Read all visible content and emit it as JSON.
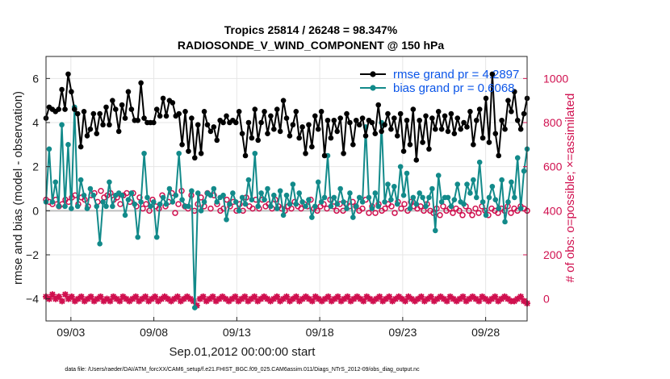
{
  "chart_data": {
    "type": "line",
    "title": "Tropics 25814 / 26248 = 98.347%",
    "subtitle": "RADIOSONDE_V_WIND_COMPONENT @ 150 hPa",
    "xlabel": "Sep.01,2012 00:00:00 start",
    "ylabel_left": "rmse and bias (model - observation)",
    "ylabel_right": "# of obs: o=possible; ×=assimilated",
    "footnote": "data file: /Users/raeder/DAI/ATM_forcXX/CAM6_setup/f.e21.FHIST_BGC.f09_025.CAM6assim.011/Diags_NTrS_2012-09/obs_diag_output.nc",
    "x_range": [
      1.5,
      30.5
    ],
    "x_ticks": [
      3,
      8,
      13,
      18,
      23,
      28
    ],
    "x_tick_labels": [
      "09/03",
      "09/08",
      "09/13",
      "09/18",
      "09/23",
      "09/28"
    ],
    "ylim_left": [
      -5,
      7
    ],
    "y_ticks_left": [
      -4,
      -2,
      0,
      2,
      4,
      6
    ],
    "ylim_right": [
      -100,
      1100
    ],
    "y_ticks_right": [
      0,
      200,
      400,
      600,
      800,
      1000
    ],
    "grid": true,
    "zero_line": 0,
    "legend_position": "top-right",
    "colors": {
      "rmse": "#000000",
      "bias": "#128a8a",
      "obs": "#d0104f",
      "legend_text": "#0b55e8",
      "zero_line": "#bfbfbf",
      "grid": "#e6e6e6"
    },
    "series": [
      {
        "name": "rmse grand pr = 4.2897",
        "axis": "left",
        "values": [
          4.2,
          4.7,
          4.6,
          4.5,
          4.6,
          5.5,
          4.6,
          6.2,
          5.4,
          4.6,
          4.4,
          2.9,
          4.5,
          3.4,
          3.7,
          4.4,
          3.5,
          4.4,
          3.9,
          4.7,
          3.9,
          5.0,
          4.6,
          3.6,
          4.8,
          4.2,
          5.4,
          4.6,
          4.1,
          4.1,
          5.8,
          4.2,
          4.0,
          4.0,
          4.0,
          4.6,
          4.3,
          5.1,
          4.3,
          5.0,
          4.9,
          4.3,
          4.4,
          3.0,
          4.5,
          2.7,
          4.2,
          2.4,
          3.9,
          2.6,
          4.5,
          3.9,
          3.6,
          3.8,
          3.2,
          4.1,
          4.0,
          4.3,
          4.0,
          4.1,
          4.0,
          4.5,
          3.5,
          2.5,
          4.0,
          3.3,
          4.6,
          3.2,
          4.0,
          4.5,
          3.5,
          4.3,
          3.7,
          4.6,
          3.6,
          5.0,
          4.2,
          3.4,
          3.9,
          4.5,
          3.3,
          3.8,
          2.6,
          3.9,
          2.9,
          4.3,
          3.7,
          4.5,
          2.5,
          4.1,
          3.3,
          4.1,
          3.6,
          4.2,
          2.6,
          4.4,
          4.0,
          3.0,
          4.1,
          3.9,
          4.2,
          3.4,
          4.1,
          4.0,
          3.5,
          4.8,
          3.6,
          3.9,
          4.4,
          3.7,
          4.2,
          3.4,
          4.4,
          2.7,
          4.1,
          3.0,
          4.6,
          2.3,
          4.1,
          3.1,
          4.3,
          2.8,
          4.2,
          3.7,
          4.5,
          3.7,
          4.3,
          3.6,
          4.4,
          3.5,
          4.2,
          3.7,
          4.0,
          3.8,
          4.5,
          3.0,
          4.1,
          4.6,
          3.3,
          5.1,
          3.1,
          6.2,
          3.5,
          2.5,
          4.1,
          3.7,
          5.0,
          4.5,
          5.4,
          4.1,
          3.7,
          4.4,
          5.1
        ],
        "x_start": 1.5,
        "x_end": 30.5
      },
      {
        "name": "bias grand pr = 0.6068",
        "axis": "left",
        "values": [
          0.4,
          2.8,
          0.4,
          1.3,
          0.2,
          3.9,
          0.2,
          3.0,
          0.1,
          4.7,
          0.2,
          1.4,
          0.7,
          0.1,
          1.0,
          0.7,
          0.2,
          -1.5,
          0.4,
          0.2,
          1.3,
          0.2,
          0.7,
          0.8,
          0.7,
          -0.2,
          0.5,
          0.8,
          0.3,
          -1.2,
          0.4,
          2.6,
          0.6,
          0.2,
          0.4,
          -1.2,
          0.3,
          0.6,
          0.3,
          1.0,
          0.4,
          0.7,
          2.6,
          0.5,
          0.2,
          0.2,
          0.9,
          -4.4,
          0.8,
          0.0,
          0.4,
          0.8,
          0.7,
          1.0,
          0.4,
          0.6,
          0.7,
          -0.4,
          0.3,
          0.8,
          0.4,
          0.0,
          0.6,
          0.3,
          1.4,
          0.5,
          2.6,
          0.2,
          0.8,
          0.5,
          1.0,
          0.2,
          0.7,
          0.1,
          0.9,
          -0.2,
          0.7,
          0.3,
          1.2,
          0.3,
          0.8,
          0.4,
          0.2,
          0.5,
          -0.3,
          0.2,
          1.3,
          0.4,
          0.6,
          2.5,
          0.2,
          0.6,
          0.3,
          1.0,
          0.4,
          0.1,
          0.8,
          -0.3,
          0.2,
          0.6,
          0.4,
          3.8,
          0.6,
          0.1,
          0.8,
          0.2,
          4.0,
          0.4,
          1.2,
          0.5,
          1.1,
          0.3,
          2.0,
          0.7,
          1.7,
          0.1,
          0.6,
          0.3,
          0.8,
          0.6,
          0.2,
          0.6,
          1.0,
          -0.9,
          1.6,
          0.4,
          0.6,
          0.6,
          0.2,
          0.5,
          1.2,
          0.4,
          0.3,
          1.2,
          0.8,
          1.4,
          0.6,
          2.2,
          0.4,
          -0.2,
          0.6,
          1.1,
          0.5,
          0.1,
          1.4,
          -0.5,
          0.4,
          1.3,
          0.6,
          2.4,
          0.1,
          1.8,
          2.8
        ],
        "x_start": 1.5,
        "x_end": 30.5
      },
      {
        "name": "# of obs possible (o)",
        "axis": "right",
        "values": [
          450,
          440,
          430,
          450,
          420,
          430,
          450,
          440,
          460,
          470,
          430,
          460,
          450,
          420,
          470,
          480,
          440,
          490,
          460,
          470,
          480,
          450,
          460,
          430,
          470,
          480,
          440,
          480,
          420,
          460,
          410,
          430,
          400,
          450,
          420,
          410,
          470,
          420,
          440,
          480,
          390,
          430,
          490,
          420,
          410,
          470,
          400,
          430,
          460,
          420,
          480,
          410,
          470,
          430,
          400,
          410,
          450,
          420,
          440,
          400,
          430,
          400,
          460,
          420,
          410,
          450,
          410,
          450,
          420,
          430,
          410,
          450,
          420,
          410,
          400,
          420,
          410,
          440,
          420,
          410,
          430,
          420,
          450,
          410,
          400,
          420,
          430,
          410,
          450,
          420,
          400,
          430,
          400,
          430,
          420,
          440,
          420,
          400,
          410,
          450,
          390,
          420,
          390,
          430,
          400,
          410,
          430,
          420,
          390,
          440,
          410,
          430,
          400,
          440,
          420,
          410,
          420,
          400,
          430,
          400,
          390,
          410,
          380,
          420,
          400,
          410,
          390,
          410,
          400,
          380,
          420,
          400,
          380,
          410,
          390,
          420,
          400,
          380,
          410,
          400,
          390,
          410,
          400,
          420,
          390,
          410,
          400,
          420,
          410,
          400
        ],
        "x_start": 1.5,
        "x_end": 30.5
      },
      {
        "name": "# of obs assimilated (×)",
        "axis": "right",
        "values": [
          10,
          0,
          20,
          0,
          10,
          -10,
          20,
          0,
          10,
          -10,
          0,
          10,
          -10,
          0,
          10,
          -10,
          0,
          10,
          -10,
          0,
          -10,
          10,
          0,
          -10,
          10,
          0,
          -10,
          0,
          10,
          -10,
          0,
          10,
          -10,
          0,
          10,
          -10,
          0,
          10,
          0,
          -10,
          0,
          10,
          -10,
          0,
          10,
          0,
          -10,
          -30,
          0,
          10,
          -10,
          0,
          10,
          -10,
          0,
          10,
          0,
          -10,
          0,
          10,
          -10,
          0,
          10,
          -10,
          0,
          10,
          -10,
          0,
          10,
          0,
          -10,
          0,
          10,
          -10,
          0,
          10,
          -10,
          0,
          10,
          -10,
          0,
          10,
          0,
          -10,
          10,
          0,
          -10,
          0,
          10,
          -10,
          0,
          10,
          -10,
          0,
          10,
          -10,
          0,
          10,
          0,
          -10,
          10,
          0,
          -10,
          0,
          10,
          -10,
          0,
          10,
          -10,
          0,
          10,
          0,
          -10,
          10,
          0,
          -10,
          0,
          10,
          -10,
          0,
          10,
          -10,
          0,
          10,
          0,
          -10,
          10,
          0,
          -10,
          0,
          10,
          -10,
          0,
          10,
          0,
          -10,
          10,
          0,
          -10,
          0,
          10,
          -10,
          0,
          10,
          0,
          -10,
          -10,
          0,
          10,
          -10,
          -20
        ],
        "x_start": 1.5,
        "x_end": 30.5
      }
    ]
  }
}
